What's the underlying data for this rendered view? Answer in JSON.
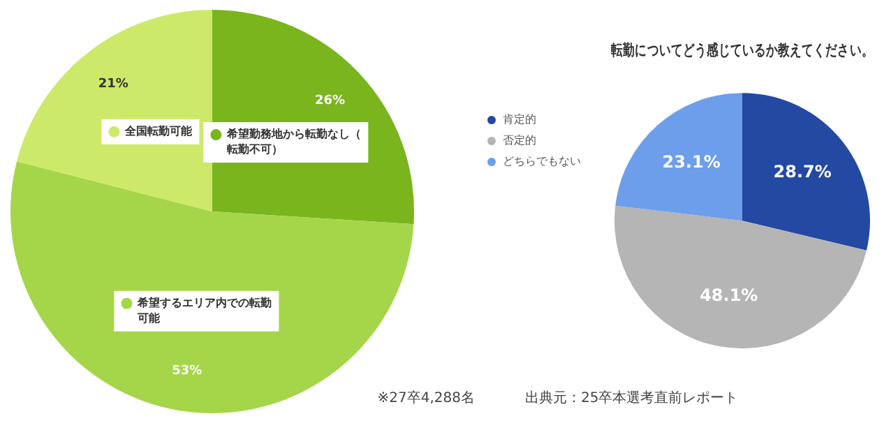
{
  "chart_data": [
    {
      "type": "pie",
      "categories": [
        "希望勤務地から転勤なし（転勤不可）",
        "希望するエリア内での転勤可能",
        "全国転勤可能"
      ],
      "values": [
        26,
        53,
        21
      ],
      "colors": [
        "#7ab51d",
        "#a5d64a",
        "#cde96a"
      ],
      "value_labels": [
        "26%",
        "53%",
        "21%"
      ],
      "legend": "center",
      "annotations": [
        "※27卒4,288名"
      ]
    },
    {
      "type": "pie",
      "title": "転勤についてどう感じているか教えてください。",
      "categories": [
        "肯定的",
        "否定的",
        "どちらでもない"
      ],
      "values": [
        28.7,
        48.1,
        23.1
      ],
      "colors": [
        "#2349a3",
        "#b5b5b5",
        "#6d9eeb"
      ],
      "value_labels": [
        "28.7%",
        "48.1%",
        "23.1%"
      ],
      "legend": "top left",
      "annotations": [
        "出典元：25卒本選考直前レポート"
      ]
    }
  ]
}
